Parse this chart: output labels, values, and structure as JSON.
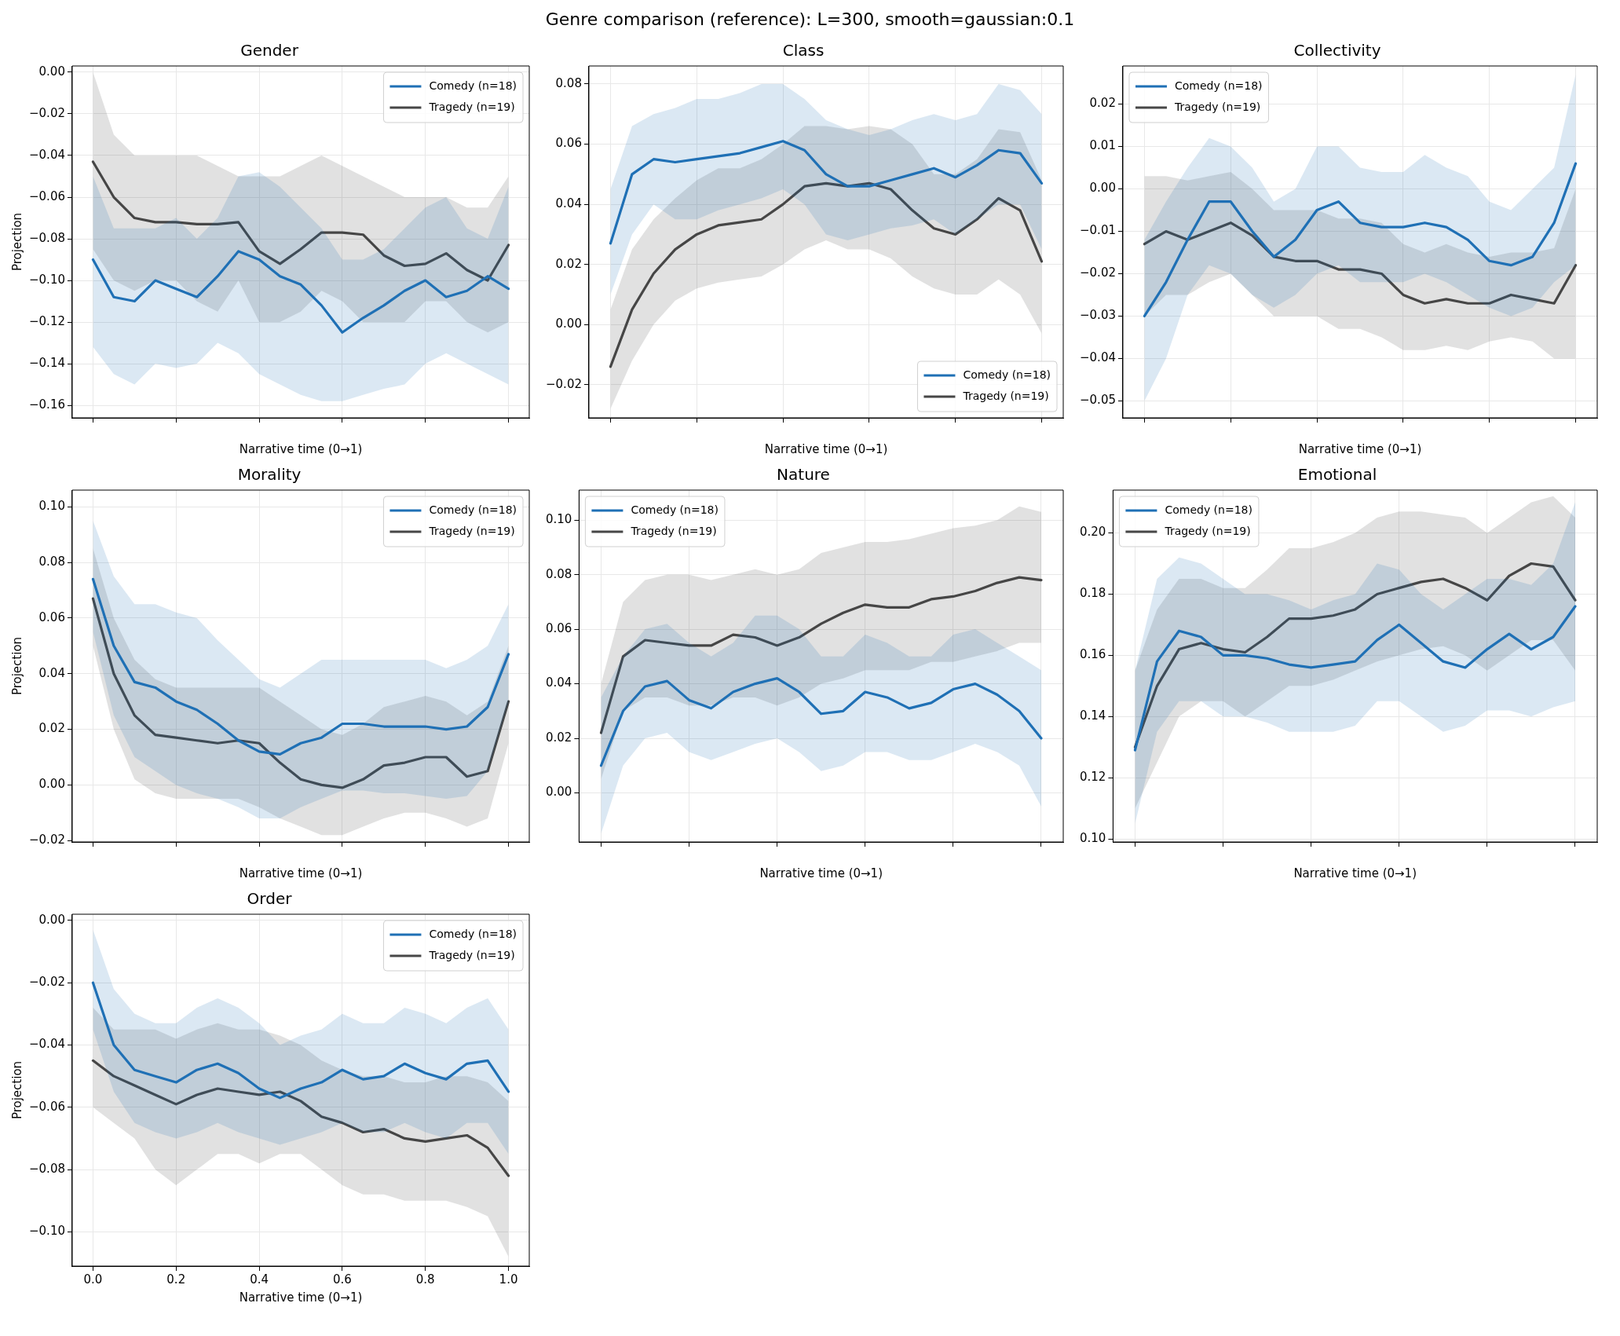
{
  "chart_data": [
    {
      "type": "other",
      "title": "Genre comparison (reference): L=300, smooth=gaussian:0.1"
    },
    {
      "type": "line",
      "title": "Gender",
      "xlabel": "Narrative time (0→1)",
      "ylabel": "Projection",
      "grid": true,
      "legend": "top right",
      "tick_labels": "y",
      "x": [
        0,
        0.05,
        0.1,
        0.15,
        0.2,
        0.25,
        0.3,
        0.35,
        0.4,
        0.45,
        0.5,
        0.55,
        0.6,
        0.65,
        0.7,
        0.75,
        0.8,
        0.85,
        0.9,
        0.95,
        1
      ],
      "xlim": [
        -0.05,
        1.05
      ],
      "xticks": [
        {
          "value": 0,
          "label": null
        },
        {
          "value": 0.2,
          "label": null
        },
        {
          "value": 0.4,
          "label": null
        },
        {
          "value": 0.6,
          "label": null
        },
        {
          "value": 0.8,
          "label": null
        },
        {
          "value": 1,
          "label": null
        }
      ],
      "ylim": [
        -0.166,
        0.003
      ],
      "yticks": [
        {
          "value": 0,
          "label": "0.00"
        },
        {
          "value": -0.02,
          "label": "−0.02"
        },
        {
          "value": -0.04,
          "label": "−0.04"
        },
        {
          "value": -0.06,
          "label": "−0.06"
        },
        {
          "value": -0.08,
          "label": "−0.08"
        },
        {
          "value": -0.1,
          "label": "−0.10"
        },
        {
          "value": -0.12,
          "label": "−0.12"
        },
        {
          "value": -0.14,
          "label": "−0.14"
        },
        {
          "value": -0.16,
          "label": "−0.16"
        }
      ],
      "series": [
        {
          "name": "Comedy (n=18)",
          "color": "#1f70b5",
          "values": [
            -0.09,
            -0.108,
            -0.11,
            -0.1,
            -0.104,
            -0.108,
            -0.098,
            -0.086,
            -0.09,
            -0.098,
            -0.102,
            -0.112,
            -0.125,
            -0.118,
            -0.112,
            -0.105,
            -0.1,
            -0.108,
            -0.105,
            -0.098,
            -0.104
          ],
          "lower": [
            -0.132,
            -0.145,
            -0.15,
            -0.14,
            -0.142,
            -0.14,
            -0.13,
            -0.135,
            -0.145,
            -0.15,
            -0.155,
            -0.158,
            -0.158,
            -0.155,
            -0.152,
            -0.15,
            -0.14,
            -0.135,
            -0.14,
            -0.145,
            -0.15
          ],
          "upper": [
            -0.05,
            -0.075,
            -0.075,
            -0.075,
            -0.07,
            -0.08,
            -0.07,
            -0.05,
            -0.048,
            -0.055,
            -0.065,
            -0.075,
            -0.09,
            -0.09,
            -0.085,
            -0.075,
            -0.065,
            -0.06,
            -0.075,
            -0.08,
            -0.055
          ]
        },
        {
          "name": "Tragedy (n=19)",
          "color": "#474747",
          "values": [
            -0.043,
            -0.06,
            -0.07,
            -0.072,
            -0.072,
            -0.073,
            -0.073,
            -0.072,
            -0.086,
            -0.092,
            -0.085,
            -0.077,
            -0.077,
            -0.078,
            -0.088,
            -0.093,
            -0.092,
            -0.087,
            -0.095,
            -0.1,
            -0.083
          ],
          "lower": [
            -0.085,
            -0.1,
            -0.105,
            -0.1,
            -0.1,
            -0.11,
            -0.115,
            -0.1,
            -0.12,
            -0.12,
            -0.115,
            -0.105,
            -0.11,
            -0.12,
            -0.12,
            -0.12,
            -0.11,
            -0.11,
            -0.12,
            -0.125,
            -0.12
          ],
          "upper": [
            0,
            -0.03,
            -0.04,
            -0.04,
            -0.04,
            -0.04,
            -0.045,
            -0.05,
            -0.05,
            -0.05,
            -0.045,
            -0.04,
            -0.045,
            -0.05,
            -0.055,
            -0.06,
            -0.06,
            -0.06,
            -0.065,
            -0.065,
            -0.05
          ]
        }
      ]
    },
    {
      "type": "line",
      "title": "Class",
      "xlabel": "Narrative time (0→1)",
      "grid": true,
      "legend": "bottom right",
      "categories": [
        null,
        null,
        null,
        null,
        null,
        null,
        null,
        null,
        null,
        null,
        null,
        null,
        null,
        null,
        null,
        null,
        null,
        null,
        null,
        null,
        null
      ],
      "ylim": [
        -0.031,
        0.086
      ],
      "yticks": [
        {
          "value": -0.02,
          "label": "−0.02"
        },
        {
          "value": 0,
          "label": "0.00"
        },
        {
          "value": 0.02,
          "label": "0.02"
        },
        {
          "value": 0.04,
          "label": "0.04"
        },
        {
          "value": 0.06,
          "label": "0.06"
        },
        {
          "value": 0.08,
          "label": "0.08"
        }
      ],
      "series": [
        {
          "name": "Comedy (n=18)",
          "color": "#1f70b5",
          "values": [
            0.027,
            0.05,
            0.055,
            0.054,
            0.055,
            0.056,
            0.057,
            0.059,
            0.061,
            0.058,
            0.05,
            0.046,
            0.046,
            0.048,
            0.05,
            0.052,
            0.049,
            0.053,
            0.058,
            0.057,
            0.047
          ],
          "lower": [
            0.01,
            0.03,
            0.04,
            0.035,
            0.035,
            0.038,
            0.04,
            0.042,
            0.045,
            0.04,
            0.03,
            0.028,
            0.03,
            0.032,
            0.033,
            0.035,
            0.03,
            0.035,
            0.04,
            0.04,
            0.025
          ],
          "upper": [
            0.045,
            0.066,
            0.07,
            0.072,
            0.075,
            0.075,
            0.077,
            0.08,
            0.08,
            0.075,
            0.068,
            0.065,
            0.063,
            0.065,
            0.068,
            0.07,
            0.068,
            0.07,
            0.08,
            0.078,
            0.07
          ]
        },
        {
          "name": "Tragedy (n=19)",
          "color": "#474747",
          "values": [
            -0.014,
            0.005,
            0.017,
            0.025,
            0.03,
            0.033,
            0.034,
            0.035,
            0.04,
            0.046,
            0.047,
            0.046,
            0.047,
            0.045,
            0.038,
            0.032,
            0.03,
            0.035,
            0.042,
            0.038,
            0.021
          ],
          "lower": [
            -0.028,
            -0.012,
            0,
            0.008,
            0.012,
            0.014,
            0.015,
            0.016,
            0.02,
            0.025,
            0.028,
            0.025,
            0.025,
            0.022,
            0.016,
            0.012,
            0.01,
            0.01,
            0.015,
            0.01,
            -0.003
          ],
          "upper": [
            0.005,
            0.025,
            0.035,
            0.042,
            0.048,
            0.052,
            0.052,
            0.055,
            0.06,
            0.066,
            0.066,
            0.065,
            0.066,
            0.065,
            0.06,
            0.05,
            0.05,
            0.055,
            0.065,
            0.064,
            0.048
          ]
        }
      ]
    },
    {
      "type": "line",
      "title": "Collectivity",
      "xlabel": "Narrative time (0→1)",
      "grid": true,
      "legend": "top left",
      "categories": [
        null,
        null,
        null,
        null,
        null,
        null,
        null,
        null,
        null,
        null,
        null,
        null,
        null,
        null,
        null,
        null,
        null,
        null,
        null,
        null,
        null
      ],
      "ylim": [
        -0.054,
        0.029
      ],
      "yticks": [
        {
          "value": -0.05,
          "label": "−0.05"
        },
        {
          "value": -0.04,
          "label": "−0.04"
        },
        {
          "value": -0.03,
          "label": "−0.03"
        },
        {
          "value": -0.02,
          "label": "−0.02"
        },
        {
          "value": -0.01,
          "label": "−0.01"
        },
        {
          "value": 0,
          "label": "0.00"
        },
        {
          "value": 0.01,
          "label": "0.01"
        },
        {
          "value": 0.02,
          "label": "0.02"
        }
      ],
      "series": [
        {
          "name": "Comedy (n=18)",
          "color": "#1f70b5",
          "values": [
            -0.03,
            -0.022,
            -0.012,
            -0.003,
            -0.003,
            -0.01,
            -0.016,
            -0.012,
            -0.005,
            -0.003,
            -0.008,
            -0.009,
            -0.009,
            -0.008,
            -0.009,
            -0.012,
            -0.017,
            -0.018,
            -0.016,
            -0.008,
            0.006
          ],
          "lower": [
            -0.05,
            -0.04,
            -0.025,
            -0.018,
            -0.02,
            -0.025,
            -0.028,
            -0.025,
            -0.02,
            -0.018,
            -0.022,
            -0.022,
            -0.022,
            -0.02,
            -0.022,
            -0.025,
            -0.028,
            -0.03,
            -0.028,
            -0.022,
            -0.018
          ],
          "upper": [
            -0.012,
            -0.003,
            0.005,
            0.012,
            0.01,
            0.005,
            -0.003,
            0,
            0.01,
            0.01,
            0.005,
            0.004,
            0.004,
            0.008,
            0.005,
            0.003,
            -0.003,
            -0.005,
            0,
            0.005,
            0.027
          ]
        },
        {
          "name": "Tragedy (n=19)",
          "color": "#474747",
          "values": [
            -0.013,
            -0.01,
            -0.012,
            -0.01,
            -0.008,
            -0.011,
            -0.016,
            -0.017,
            -0.017,
            -0.019,
            -0.019,
            -0.02,
            -0.025,
            -0.027,
            -0.026,
            -0.027,
            -0.027,
            -0.025,
            -0.026,
            -0.027,
            -0.018
          ],
          "lower": [
            -0.03,
            -0.025,
            -0.025,
            -0.022,
            -0.02,
            -0.025,
            -0.03,
            -0.03,
            -0.03,
            -0.033,
            -0.033,
            -0.035,
            -0.038,
            -0.038,
            -0.037,
            -0.038,
            -0.036,
            -0.035,
            -0.036,
            -0.04,
            -0.04
          ],
          "upper": [
            0.003,
            0.003,
            0.002,
            0.003,
            0.004,
            0,
            -0.005,
            -0.005,
            -0.005,
            -0.007,
            -0.007,
            -0.008,
            -0.013,
            -0.015,
            -0.013,
            -0.015,
            -0.016,
            -0.015,
            -0.015,
            -0.014,
            0
          ]
        }
      ]
    },
    {
      "type": "line",
      "title": "Morality",
      "xlabel": "Narrative time (0→1)",
      "ylabel": "Projection",
      "grid": true,
      "legend": "top right",
      "tick_labels": "y",
      "x": [
        0,
        0.05,
        0.1,
        0.15,
        0.2,
        0.25,
        0.3,
        0.35,
        0.4,
        0.45,
        0.5,
        0.55,
        0.6,
        0.65,
        0.7,
        0.75,
        0.8,
        0.85,
        0.9,
        0.95,
        1
      ],
      "xlim": [
        -0.05,
        1.05
      ],
      "xticks": [
        {
          "value": 0,
          "label": null
        },
        {
          "value": 0.2,
          "label": null
        },
        {
          "value": 0.4,
          "label": null
        },
        {
          "value": 0.6,
          "label": null
        },
        {
          "value": 0.8,
          "label": null
        },
        {
          "value": 1,
          "label": null
        }
      ],
      "ylim": [
        -0.0205,
        0.106
      ],
      "yticks": [
        {
          "value": -0.02,
          "label": "−0.02"
        },
        {
          "value": 0,
          "label": "0.00"
        },
        {
          "value": 0.02,
          "label": "0.02"
        },
        {
          "value": 0.04,
          "label": "0.04"
        },
        {
          "value": 0.06,
          "label": "0.06"
        },
        {
          "value": 0.08,
          "label": "0.08"
        },
        {
          "value": 0.1,
          "label": "0.10"
        }
      ],
      "series": [
        {
          "name": "Comedy (n=18)",
          "color": "#1f70b5",
          "values": [
            0.074,
            0.05,
            0.037,
            0.035,
            0.03,
            0.027,
            0.022,
            0.016,
            0.012,
            0.011,
            0.015,
            0.017,
            0.022,
            0.022,
            0.021,
            0.021,
            0.021,
            0.02,
            0.021,
            0.028,
            0.047
          ],
          "lower": [
            0.055,
            0.025,
            0.01,
            0.005,
            0,
            -0.003,
            -0.005,
            -0.008,
            -0.012,
            -0.012,
            -0.008,
            -0.005,
            -0.002,
            -0.002,
            -0.003,
            -0.003,
            -0.004,
            -0.005,
            -0.004,
            0.005,
            0.03
          ],
          "upper": [
            0.095,
            0.075,
            0.065,
            0.065,
            0.062,
            0.06,
            0.052,
            0.045,
            0.038,
            0.035,
            0.04,
            0.045,
            0.045,
            0.045,
            0.045,
            0.045,
            0.045,
            0.042,
            0.045,
            0.05,
            0.065
          ]
        },
        {
          "name": "Tragedy (n=19)",
          "color": "#474747",
          "values": [
            0.067,
            0.04,
            0.025,
            0.018,
            0.017,
            0.016,
            0.015,
            0.016,
            0.015,
            0.008,
            0.002,
            0,
            -0.001,
            0.002,
            0.007,
            0.008,
            0.01,
            0.01,
            0.003,
            0.005,
            0.03
          ],
          "lower": [
            0.05,
            0.02,
            0.002,
            -0.003,
            -0.005,
            -0.005,
            -0.005,
            -0.005,
            -0.008,
            -0.012,
            -0.015,
            -0.018,
            -0.018,
            -0.015,
            -0.012,
            -0.01,
            -0.01,
            -0.012,
            -0.015,
            -0.012,
            0.015
          ],
          "upper": [
            0.085,
            0.06,
            0.045,
            0.038,
            0.035,
            0.035,
            0.035,
            0.035,
            0.035,
            0.03,
            0.025,
            0.02,
            0.018,
            0.022,
            0.028,
            0.03,
            0.032,
            0.03,
            0.025,
            0.03,
            0.05
          ]
        }
      ]
    },
    {
      "type": "line",
      "title": "Nature",
      "xlabel": "Narrative time (0→1)",
      "grid": true,
      "legend": "top left",
      "categories": [
        null,
        null,
        null,
        null,
        null,
        null,
        null,
        null,
        null,
        null,
        null,
        null,
        null,
        null,
        null,
        null,
        null,
        null,
        null,
        null,
        null
      ],
      "ylim": [
        -0.018,
        0.111
      ],
      "yticks": [
        {
          "value": 0,
          "label": "0.00"
        },
        {
          "value": 0.02,
          "label": "0.02"
        },
        {
          "value": 0.04,
          "label": "0.04"
        },
        {
          "value": 0.06,
          "label": "0.06"
        },
        {
          "value": 0.08,
          "label": "0.08"
        },
        {
          "value": 0.1,
          "label": "0.10"
        }
      ],
      "series": [
        {
          "name": "Comedy (n=18)",
          "color": "#1f70b5",
          "values": [
            0.01,
            0.03,
            0.039,
            0.041,
            0.034,
            0.031,
            0.037,
            0.04,
            0.042,
            0.037,
            0.029,
            0.03,
            0.037,
            0.035,
            0.031,
            0.033,
            0.038,
            0.04,
            0.036,
            0.03,
            0.02
          ],
          "lower": [
            -0.015,
            0.01,
            0.02,
            0.022,
            0.015,
            0.012,
            0.015,
            0.018,
            0.02,
            0.015,
            0.008,
            0.01,
            0.015,
            0.015,
            0.012,
            0.012,
            0.015,
            0.018,
            0.015,
            0.01,
            -0.005
          ],
          "upper": [
            0.035,
            0.05,
            0.06,
            0.062,
            0.055,
            0.05,
            0.055,
            0.065,
            0.065,
            0.06,
            0.05,
            0.05,
            0.058,
            0.055,
            0.05,
            0.05,
            0.058,
            0.06,
            0.055,
            0.05,
            0.045
          ]
        },
        {
          "name": "Tragedy (n=19)",
          "color": "#474747",
          "values": [
            0.022,
            0.05,
            0.056,
            0.055,
            0.054,
            0.054,
            0.058,
            0.057,
            0.054,
            0.057,
            0.062,
            0.066,
            0.069,
            0.068,
            0.068,
            0.071,
            0.072,
            0.074,
            0.077,
            0.079,
            0.078
          ],
          "lower": [
            0.005,
            0.03,
            0.035,
            0.035,
            0.032,
            0.032,
            0.035,
            0.035,
            0.032,
            0.035,
            0.04,
            0.042,
            0.045,
            0.045,
            0.045,
            0.048,
            0.048,
            0.05,
            0.052,
            0.055,
            0.055
          ],
          "upper": [
            0.04,
            0.07,
            0.078,
            0.08,
            0.08,
            0.078,
            0.08,
            0.082,
            0.08,
            0.082,
            0.088,
            0.09,
            0.092,
            0.092,
            0.093,
            0.095,
            0.097,
            0.098,
            0.1,
            0.105,
            0.103
          ]
        }
      ]
    },
    {
      "type": "line",
      "title": "Emotional",
      "xlabel": "Narrative time (0→1)",
      "grid": true,
      "legend": "top left",
      "categories": [
        null,
        null,
        null,
        null,
        null,
        null,
        null,
        null,
        null,
        null,
        null,
        null,
        null,
        null,
        null,
        null,
        null,
        null,
        null,
        null,
        null
      ],
      "ylim": [
        0.099,
        0.214
      ],
      "yticks": [
        {
          "value": 0.1,
          "label": "0.10"
        },
        {
          "value": 0.12,
          "label": "0.12"
        },
        {
          "value": 0.14,
          "label": "0.14"
        },
        {
          "value": 0.16,
          "label": "0.16"
        },
        {
          "value": 0.18,
          "label": "0.18"
        },
        {
          "value": 0.2,
          "label": "0.20"
        }
      ],
      "series": [
        {
          "name": "Comedy (n=18)",
          "color": "#1f70b5",
          "values": [
            0.129,
            0.158,
            0.168,
            0.166,
            0.16,
            0.16,
            0.159,
            0.157,
            0.156,
            0.157,
            0.158,
            0.165,
            0.17,
            0.164,
            0.158,
            0.156,
            0.162,
            0.167,
            0.162,
            0.166,
            0.176
          ],
          "lower": [
            0.105,
            0.135,
            0.145,
            0.145,
            0.14,
            0.14,
            0.138,
            0.135,
            0.135,
            0.135,
            0.137,
            0.145,
            0.145,
            0.14,
            0.135,
            0.137,
            0.142,
            0.142,
            0.14,
            0.143,
            0.145
          ],
          "upper": [
            0.155,
            0.185,
            0.192,
            0.19,
            0.185,
            0.18,
            0.18,
            0.178,
            0.175,
            0.178,
            0.18,
            0.19,
            0.188,
            0.18,
            0.175,
            0.18,
            0.185,
            0.185,
            0.183,
            0.19,
            0.21
          ]
        },
        {
          "name": "Tragedy (n=19)",
          "color": "#474747",
          "values": [
            0.13,
            0.15,
            0.162,
            0.164,
            0.162,
            0.161,
            0.166,
            0.172,
            0.172,
            0.173,
            0.175,
            0.18,
            0.182,
            0.184,
            0.185,
            0.182,
            0.178,
            0.186,
            0.19,
            0.189,
            0.178
          ],
          "lower": [
            0.11,
            0.125,
            0.14,
            0.145,
            0.145,
            0.14,
            0.145,
            0.15,
            0.15,
            0.152,
            0.155,
            0.158,
            0.16,
            0.162,
            0.163,
            0.16,
            0.155,
            0.16,
            0.165,
            0.165,
            0.155
          ],
          "upper": [
            0.155,
            0.175,
            0.185,
            0.185,
            0.182,
            0.182,
            0.188,
            0.195,
            0.195,
            0.197,
            0.2,
            0.205,
            0.207,
            0.207,
            0.206,
            0.205,
            0.2,
            0.205,
            0.21,
            0.212,
            0.205
          ]
        }
      ]
    },
    {
      "type": "line",
      "title": "Order",
      "xlabel": "Narrative time (0→1)",
      "ylabel": "Projection",
      "grid": true,
      "legend": "top right",
      "x": [
        0,
        0.05,
        0.1,
        0.15,
        0.2,
        0.25,
        0.3,
        0.35,
        0.4,
        0.45,
        0.5,
        0.55,
        0.6,
        0.65,
        0.7,
        0.75,
        0.8,
        0.85,
        0.9,
        0.95,
        1
      ],
      "xlim": [
        -0.05,
        1.05
      ],
      "xticks": [
        {
          "value": 0,
          "label": "0.0"
        },
        {
          "value": 0.2,
          "label": "0.2"
        },
        {
          "value": 0.4,
          "label": "0.4"
        },
        {
          "value": 0.6,
          "label": "0.6"
        },
        {
          "value": 0.8,
          "label": "0.8"
        },
        {
          "value": 1,
          "label": "1.0"
        }
      ],
      "ylim": [
        -0.111,
        0.002
      ],
      "yticks": [
        {
          "value": 0,
          "label": "0.00"
        },
        {
          "value": -0.02,
          "label": "−0.02"
        },
        {
          "value": -0.04,
          "label": "−0.04"
        },
        {
          "value": -0.06,
          "label": "−0.06"
        },
        {
          "value": -0.08,
          "label": "−0.08"
        },
        {
          "value": -0.1,
          "label": "−0.10"
        }
      ],
      "series": [
        {
          "name": "Comedy (n=18)",
          "color": "#1f70b5",
          "values": [
            -0.02,
            -0.04,
            -0.048,
            -0.05,
            -0.052,
            -0.048,
            -0.046,
            -0.049,
            -0.054,
            -0.057,
            -0.054,
            -0.052,
            -0.048,
            -0.051,
            -0.05,
            -0.046,
            -0.049,
            -0.051,
            -0.046,
            -0.045,
            -0.055
          ],
          "lower": [
            -0.035,
            -0.055,
            -0.065,
            -0.068,
            -0.07,
            -0.068,
            -0.065,
            -0.068,
            -0.07,
            -0.072,
            -0.07,
            -0.068,
            -0.065,
            -0.068,
            -0.068,
            -0.065,
            -0.068,
            -0.07,
            -0.065,
            -0.065,
            -0.075
          ],
          "upper": [
            -0.003,
            -0.022,
            -0.03,
            -0.033,
            -0.033,
            -0.028,
            -0.025,
            -0.028,
            -0.033,
            -0.04,
            -0.037,
            -0.035,
            -0.03,
            -0.033,
            -0.033,
            -0.028,
            -0.03,
            -0.033,
            -0.028,
            -0.025,
            -0.035
          ]
        },
        {
          "name": "Tragedy (n=19)",
          "color": "#474747",
          "values": [
            -0.045,
            -0.05,
            -0.053,
            -0.056,
            -0.059,
            -0.056,
            -0.054,
            -0.055,
            -0.056,
            -0.055,
            -0.058,
            -0.063,
            -0.065,
            -0.068,
            -0.067,
            -0.07,
            -0.071,
            -0.07,
            -0.069,
            -0.073,
            -0.082
          ],
          "lower": [
            -0.06,
            -0.065,
            -0.07,
            -0.08,
            -0.085,
            -0.08,
            -0.075,
            -0.075,
            -0.078,
            -0.075,
            -0.075,
            -0.08,
            -0.085,
            -0.088,
            -0.088,
            -0.09,
            -0.09,
            -0.09,
            -0.092,
            -0.095,
            -0.108
          ],
          "upper": [
            -0.028,
            -0.035,
            -0.035,
            -0.035,
            -0.038,
            -0.035,
            -0.033,
            -0.035,
            -0.035,
            -0.037,
            -0.04,
            -0.045,
            -0.048,
            -0.05,
            -0.05,
            -0.052,
            -0.052,
            -0.05,
            -0.05,
            -0.052,
            -0.058
          ]
        }
      ]
    }
  ]
}
